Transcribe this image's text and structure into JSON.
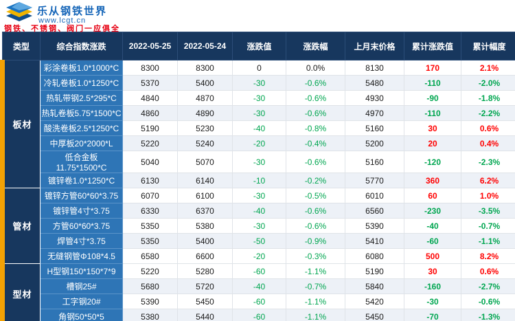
{
  "brand": {
    "name": "乐从钢铁世界",
    "url": "www.lcgt.cn",
    "tagline": "钢铁、不锈钢、阀门一应俱全"
  },
  "colors": {
    "header_navy": "#17375e",
    "name_blue": "#2e75b6",
    "accent_orange": "#f2a104",
    "up_red": "#ff0000",
    "down_green": "#00a650"
  },
  "table": {
    "headers": [
      "类型",
      "综合指数涨跌",
      "2022-05-25",
      "2022-05-24",
      "涨跌值",
      "涨跌幅",
      "上月末价格",
      "累计涨跌值",
      "累计幅度"
    ],
    "groups": [
      {
        "type": "板材",
        "rows": [
          {
            "name": "彩涂卷板1.0*1000*C",
            "d1": "8300",
            "d2": "8300",
            "chg": "0",
            "chg_pct": "0.0%",
            "last": "8130",
            "cum": "170",
            "cum_pct": "2.1%",
            "chg_dir": "zero",
            "cum_dir": "up"
          },
          {
            "name": "冷轧卷板1.0*1250*C",
            "d1": "5370",
            "d2": "5400",
            "chg": "-30",
            "chg_pct": "-0.6%",
            "last": "5480",
            "cum": "-110",
            "cum_pct": "-2.0%",
            "chg_dir": "down",
            "cum_dir": "down"
          },
          {
            "name": "热轧带钢2.5*295*C",
            "d1": "4840",
            "d2": "4870",
            "chg": "-30",
            "chg_pct": "-0.6%",
            "last": "4930",
            "cum": "-90",
            "cum_pct": "-1.8%",
            "chg_dir": "down",
            "cum_dir": "down"
          },
          {
            "name": "热轧卷板5.75*1500*C",
            "d1": "4860",
            "d2": "4890",
            "chg": "-30",
            "chg_pct": "-0.6%",
            "last": "4970",
            "cum": "-110",
            "cum_pct": "-2.2%",
            "chg_dir": "down",
            "cum_dir": "down"
          },
          {
            "name": "酸洗卷板2.5*1250*C",
            "d1": "5190",
            "d2": "5230",
            "chg": "-40",
            "chg_pct": "-0.8%",
            "last": "5160",
            "cum": "30",
            "cum_pct": "0.6%",
            "chg_dir": "down",
            "cum_dir": "up"
          },
          {
            "name": "中厚板20*2000*L",
            "d1": "5220",
            "d2": "5240",
            "chg": "-20",
            "chg_pct": "-0.4%",
            "last": "5200",
            "cum": "20",
            "cum_pct": "0.4%",
            "chg_dir": "down",
            "cum_dir": "up"
          },
          {
            "name": "低合金板11.75*1500*C",
            "d1": "5040",
            "d2": "5070",
            "chg": "-30",
            "chg_pct": "-0.6%",
            "last": "5160",
            "cum": "-120",
            "cum_pct": "-2.3%",
            "chg_dir": "down",
            "cum_dir": "down"
          },
          {
            "name": "镀锌卷1.0*1250*C",
            "d1": "6130",
            "d2": "6140",
            "chg": "-10",
            "chg_pct": "-0.2%",
            "last": "5770",
            "cum": "360",
            "cum_pct": "6.2%",
            "chg_dir": "down",
            "cum_dir": "up"
          }
        ]
      },
      {
        "type": "管材",
        "rows": [
          {
            "name": "镀锌方管60*60*3.75",
            "d1": "6070",
            "d2": "6100",
            "chg": "-30",
            "chg_pct": "-0.5%",
            "last": "6010",
            "cum": "60",
            "cum_pct": "1.0%",
            "chg_dir": "down",
            "cum_dir": "up"
          },
          {
            "name": "镀锌管4寸*3.75",
            "d1": "6330",
            "d2": "6370",
            "chg": "-40",
            "chg_pct": "-0.6%",
            "last": "6560",
            "cum": "-230",
            "cum_pct": "-3.5%",
            "chg_dir": "down",
            "cum_dir": "down"
          },
          {
            "name": "方管60*60*3.75",
            "d1": "5350",
            "d2": "5380",
            "chg": "-30",
            "chg_pct": "-0.6%",
            "last": "5390",
            "cum": "-40",
            "cum_pct": "-0.7%",
            "chg_dir": "down",
            "cum_dir": "down"
          },
          {
            "name": "焊管4寸*3.75",
            "d1": "5350",
            "d2": "5400",
            "chg": "-50",
            "chg_pct": "-0.9%",
            "last": "5410",
            "cum": "-60",
            "cum_pct": "-1.1%",
            "chg_dir": "down",
            "cum_dir": "down"
          },
          {
            "name": "无缝钢管Φ108*4.5",
            "d1": "6580",
            "d2": "6600",
            "chg": "-20",
            "chg_pct": "-0.3%",
            "last": "6080",
            "cum": "500",
            "cum_pct": "8.2%",
            "chg_dir": "down",
            "cum_dir": "up"
          }
        ]
      },
      {
        "type": "型材",
        "rows": [
          {
            "name": "H型钢150*150*7*9",
            "d1": "5220",
            "d2": "5280",
            "chg": "-60",
            "chg_pct": "-1.1%",
            "last": "5190",
            "cum": "30",
            "cum_pct": "0.6%",
            "chg_dir": "down",
            "cum_dir": "up"
          },
          {
            "name": "槽钢25#",
            "d1": "5680",
            "d2": "5720",
            "chg": "-40",
            "chg_pct": "-0.7%",
            "last": "5840",
            "cum": "-160",
            "cum_pct": "-2.7%",
            "chg_dir": "down",
            "cum_dir": "down"
          },
          {
            "name": "工字钢20#",
            "d1": "5390",
            "d2": "5450",
            "chg": "-60",
            "chg_pct": "-1.1%",
            "last": "5420",
            "cum": "-30",
            "cum_pct": "-0.6%",
            "chg_dir": "down",
            "cum_dir": "down"
          },
          {
            "name": "角钢50*50*5",
            "d1": "5380",
            "d2": "5440",
            "chg": "-60",
            "chg_pct": "-1.1%",
            "last": "5450",
            "cum": "-70",
            "cum_pct": "-1.3%",
            "chg_dir": "down",
            "cum_dir": "down"
          }
        ]
      }
    ]
  }
}
